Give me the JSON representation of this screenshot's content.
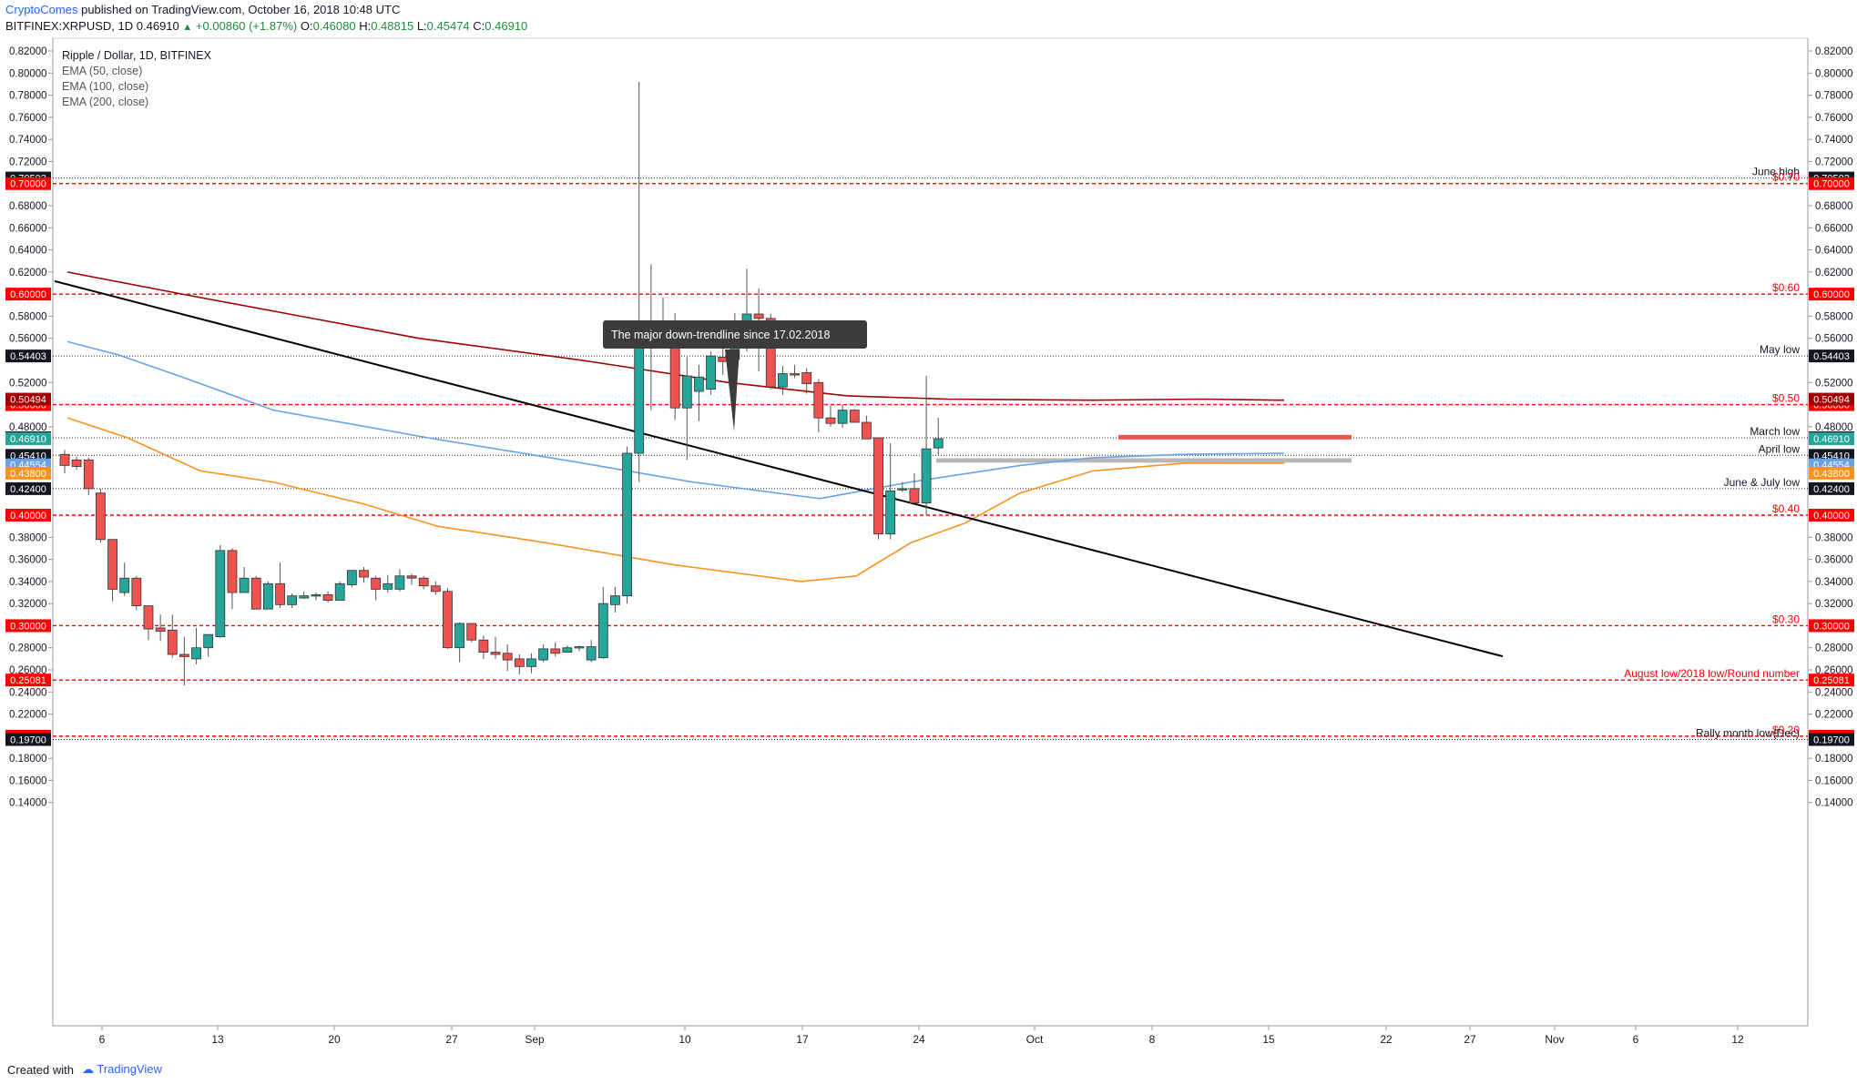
{
  "header": {
    "author": "CryptoComes",
    "published": "published on TradingView.com, October 16, 2018 10:48 UTC",
    "symbol": "BITFINEX:XRPUSD, 1D",
    "last": "0.46910",
    "change": "+0.00860 (+1.87%)",
    "o_label": "O:",
    "o": "0.46080",
    "h_label": "H:",
    "h": "0.48815",
    "l_label": "L:",
    "l": "0.45474",
    "c_label": "C:",
    "c": "0.46910"
  },
  "legend": {
    "title": "Ripple / Dollar, 1D, BITFINEX",
    "ema50": "EMA (50, close)",
    "ema100": "EMA (100, close)",
    "ema200": "EMA (200, close)"
  },
  "footer": {
    "created": "Created with",
    "brand": "TradingView"
  },
  "colors": {
    "up": "#26a69a",
    "down": "#ef5350",
    "ema50": "#f7931e",
    "ema100": "#6aa1e8",
    "ema200": "#a00000",
    "red_level": "#ff0000",
    "trendline": "#000000"
  },
  "chart_data": {
    "type": "candlestick",
    "title": "Ripple / Dollar, 1D, BITFINEX",
    "ylim": [
      0.14,
      0.82
    ],
    "y_ticks": [
      "0.82000",
      "0.80000",
      "0.78000",
      "0.76000",
      "0.74000",
      "0.72000",
      "0.68000",
      "0.66000",
      "0.64000",
      "0.62000",
      "0.58000",
      "0.56000",
      "0.52000",
      "0.48000",
      "0.38000",
      "0.36000",
      "0.34000",
      "0.32000",
      "0.28000",
      "0.26000",
      "0.24000",
      "0.22000",
      "0.18000",
      "0.16000",
      "0.14000"
    ],
    "x_ticks": [
      "6",
      "13",
      "20",
      "27",
      "Sep",
      "10",
      "17",
      "24",
      "Oct",
      "8",
      "15",
      "22",
      "27",
      "Nov",
      "6",
      "12"
    ],
    "candles": [
      {
        "o": 0.455,
        "h": 0.459,
        "l": 0.438,
        "c": 0.445
      },
      {
        "o": 0.45,
        "h": 0.453,
        "l": 0.441,
        "c": 0.444
      },
      {
        "o": 0.45,
        "h": 0.452,
        "l": 0.418,
        "c": 0.424
      },
      {
        "o": 0.42,
        "h": 0.424,
        "l": 0.375,
        "c": 0.378
      },
      {
        "o": 0.378,
        "h": 0.378,
        "l": 0.322,
        "c": 0.333
      },
      {
        "o": 0.33,
        "h": 0.357,
        "l": 0.327,
        "c": 0.343
      },
      {
        "o": 0.343,
        "h": 0.345,
        "l": 0.314,
        "c": 0.318
      },
      {
        "o": 0.318,
        "h": 0.318,
        "l": 0.287,
        "c": 0.297
      },
      {
        "o": 0.298,
        "h": 0.31,
        "l": 0.286,
        "c": 0.295
      },
      {
        "o": 0.296,
        "h": 0.31,
        "l": 0.271,
        "c": 0.274
      },
      {
        "o": 0.274,
        "h": 0.29,
        "l": 0.246,
        "c": 0.272
      },
      {
        "o": 0.27,
        "h": 0.298,
        "l": 0.265,
        "c": 0.28
      },
      {
        "o": 0.28,
        "h": 0.29,
        "l": 0.272,
        "c": 0.292
      },
      {
        "o": 0.29,
        "h": 0.373,
        "l": 0.289,
        "c": 0.368
      },
      {
        "o": 0.368,
        "h": 0.37,
        "l": 0.315,
        "c": 0.33
      },
      {
        "o": 0.33,
        "h": 0.353,
        "l": 0.33,
        "c": 0.343
      },
      {
        "o": 0.343,
        "h": 0.345,
        "l": 0.315,
        "c": 0.315
      },
      {
        "o": 0.315,
        "h": 0.34,
        "l": 0.315,
        "c": 0.338
      },
      {
        "o": 0.338,
        "h": 0.357,
        "l": 0.316,
        "c": 0.319
      },
      {
        "o": 0.319,
        "h": 0.329,
        "l": 0.316,
        "c": 0.327
      },
      {
        "o": 0.325,
        "h": 0.331,
        "l": 0.324,
        "c": 0.327
      },
      {
        "o": 0.327,
        "h": 0.33,
        "l": 0.323,
        "c": 0.328
      },
      {
        "o": 0.328,
        "h": 0.331,
        "l": 0.321,
        "c": 0.323
      },
      {
        "o": 0.323,
        "h": 0.34,
        "l": 0.323,
        "c": 0.338
      },
      {
        "o": 0.337,
        "h": 0.35,
        "l": 0.335,
        "c": 0.35
      },
      {
        "o": 0.35,
        "h": 0.353,
        "l": 0.339,
        "c": 0.344
      },
      {
        "o": 0.343,
        "h": 0.345,
        "l": 0.323,
        "c": 0.333
      },
      {
        "o": 0.333,
        "h": 0.346,
        "l": 0.33,
        "c": 0.338
      },
      {
        "o": 0.333,
        "h": 0.351,
        "l": 0.331,
        "c": 0.345
      },
      {
        "o": 0.345,
        "h": 0.347,
        "l": 0.337,
        "c": 0.343
      },
      {
        "o": 0.343,
        "h": 0.345,
        "l": 0.333,
        "c": 0.336
      },
      {
        "o": 0.336,
        "h": 0.34,
        "l": 0.328,
        "c": 0.331
      },
      {
        "o": 0.331,
        "h": 0.334,
        "l": 0.279,
        "c": 0.28
      },
      {
        "o": 0.28,
        "h": 0.303,
        "l": 0.267,
        "c": 0.302
      },
      {
        "o": 0.302,
        "h": 0.302,
        "l": 0.285,
        "c": 0.287
      },
      {
        "o": 0.287,
        "h": 0.291,
        "l": 0.27,
        "c": 0.276
      },
      {
        "o": 0.276,
        "h": 0.29,
        "l": 0.27,
        "c": 0.274
      },
      {
        "o": 0.275,
        "h": 0.283,
        "l": 0.259,
        "c": 0.269
      },
      {
        "o": 0.27,
        "h": 0.274,
        "l": 0.256,
        "c": 0.263
      },
      {
        "o": 0.263,
        "h": 0.275,
        "l": 0.257,
        "c": 0.27
      },
      {
        "o": 0.269,
        "h": 0.283,
        "l": 0.267,
        "c": 0.279
      },
      {
        "o": 0.279,
        "h": 0.285,
        "l": 0.272,
        "c": 0.275
      },
      {
        "o": 0.276,
        "h": 0.282,
        "l": 0.276,
        "c": 0.28
      },
      {
        "o": 0.28,
        "h": 0.282,
        "l": 0.277,
        "c": 0.281
      },
      {
        "o": 0.269,
        "h": 0.287,
        "l": 0.267,
        "c": 0.281
      },
      {
        "o": 0.271,
        "h": 0.335,
        "l": 0.27,
        "c": 0.32
      },
      {
        "o": 0.319,
        "h": 0.335,
        "l": 0.312,
        "c": 0.327
      },
      {
        "o": 0.327,
        "h": 0.462,
        "l": 0.32,
        "c": 0.456
      },
      {
        "o": 0.456,
        "h": 0.792,
        "l": 0.43,
        "c": 0.567
      },
      {
        "o": 0.566,
        "h": 0.627,
        "l": 0.495,
        "c": 0.575
      },
      {
        "o": 0.573,
        "h": 0.597,
        "l": 0.555,
        "c": 0.571
      },
      {
        "o": 0.573,
        "h": 0.583,
        "l": 0.486,
        "c": 0.497
      },
      {
        "o": 0.497,
        "h": 0.543,
        "l": 0.45,
        "c": 0.526
      },
      {
        "o": 0.512,
        "h": 0.536,
        "l": 0.485,
        "c": 0.525
      },
      {
        "o": 0.514,
        "h": 0.548,
        "l": 0.509,
        "c": 0.544
      },
      {
        "o": 0.543,
        "h": 0.552,
        "l": 0.527,
        "c": 0.539
      },
      {
        "o": 0.541,
        "h": 0.583,
        "l": 0.538,
        "c": 0.569
      },
      {
        "o": 0.569,
        "h": 0.623,
        "l": 0.548,
        "c": 0.582
      },
      {
        "o": 0.582,
        "h": 0.605,
        "l": 0.53,
        "c": 0.578
      },
      {
        "o": 0.578,
        "h": 0.582,
        "l": 0.514,
        "c": 0.516
      },
      {
        "o": 0.516,
        "h": 0.535,
        "l": 0.509,
        "c": 0.528
      },
      {
        "o": 0.528,
        "h": 0.536,
        "l": 0.524,
        "c": 0.527
      },
      {
        "o": 0.529,
        "h": 0.533,
        "l": 0.51,
        "c": 0.519
      },
      {
        "o": 0.52,
        "h": 0.523,
        "l": 0.475,
        "c": 0.488
      },
      {
        "o": 0.488,
        "h": 0.499,
        "l": 0.48,
        "c": 0.483
      },
      {
        "o": 0.483,
        "h": 0.5,
        "l": 0.479,
        "c": 0.495
      },
      {
        "o": 0.495,
        "h": 0.496,
        "l": 0.484,
        "c": 0.484
      },
      {
        "o": 0.484,
        "h": 0.49,
        "l": 0.469,
        "c": 0.469
      },
      {
        "o": 0.47,
        "h": 0.47,
        "l": 0.378,
        "c": 0.383
      },
      {
        "o": 0.383,
        "h": 0.465,
        "l": 0.378,
        "c": 0.422
      },
      {
        "o": 0.423,
        "h": 0.43,
        "l": 0.421,
        "c": 0.424
      },
      {
        "o": 0.424,
        "h": 0.438,
        "l": 0.41,
        "c": 0.411
      },
      {
        "o": 0.411,
        "h": 0.526,
        "l": 0.4,
        "c": 0.46
      },
      {
        "o": 0.4608,
        "h": 0.48815,
        "l": 0.45474,
        "c": 0.4691
      }
    ],
    "ema200": [
      [
        0.62,
        0.602
      ],
      [
        0.6,
        0.57
      ],
      [
        0.58,
        0.535
      ],
      [
        0.56,
        0.515
      ],
      [
        0.54,
        0.5
      ],
      [
        0.52,
        0.495
      ],
      [
        0.508,
        0.505
      ],
      [
        0.505,
        0.51
      ],
      [
        0.504,
        0.52
      ]
    ],
    "ema100": [
      [
        0.557,
        0.52
      ],
      [
        0.545,
        0.48
      ],
      [
        0.52,
        0.46
      ],
      [
        0.49,
        0.44
      ],
      [
        0.47,
        0.4
      ],
      [
        0.448,
        0.445
      ],
      [
        0.452,
        0.455
      ],
      [
        0.456,
        0.458
      ]
    ],
    "ema50": [
      [
        0.488,
        0.465
      ],
      [
        0.43,
        0.425
      ],
      [
        0.415,
        0.375
      ],
      [
        0.382,
        0.34
      ],
      [
        0.349,
        0.333
      ],
      [
        0.341,
        0.393
      ],
      [
        0.414,
        0.448
      ],
      [
        0.446,
        0.447
      ]
    ],
    "horizontal_levels": [
      {
        "value": 0.70503,
        "label": "June high",
        "badge": "0.70503",
        "style": "black-dotted"
      },
      {
        "value": 0.7,
        "label": "$0.70",
        "badge": "0.70000",
        "style": "red-dashed"
      },
      {
        "value": 0.6,
        "label": "$0.60",
        "badge": "0.60000",
        "style": "red-dashed"
      },
      {
        "value": 0.54403,
        "label": "May low",
        "badge": "0.54403",
        "style": "black-dotted"
      },
      {
        "value": 0.5,
        "label": "$0.50",
        "badge": "0.50000",
        "style": "red-dashed"
      },
      {
        "value": 0.47,
        "label": "March low",
        "badge": "0.47000",
        "style": "black-dotted"
      },
      {
        "value": 0.4541,
        "label": "April low",
        "badge": "0.45410",
        "style": "black-dotted"
      },
      {
        "value": 0.424,
        "label": "June & July low",
        "badge": "0.42400",
        "style": "black-dotted"
      },
      {
        "value": 0.4,
        "label": "$0.40",
        "badge": "0.40000",
        "style": "red-dashed"
      },
      {
        "value": 0.3,
        "label": "$0.30",
        "badge": "0.30000",
        "style": "red-dashed"
      },
      {
        "value": 0.25081,
        "label": "August low/2018 low/Round number",
        "badge": "0.25081",
        "style": "red-dashed"
      },
      {
        "value": 0.2,
        "label": "$0.20",
        "badge": "0.20000",
        "style": "red-dashed"
      },
      {
        "value": 0.197,
        "label": "Rally month low(Dec)",
        "badge": "0.19700",
        "style": "black-dotted"
      }
    ],
    "extra_badges": [
      {
        "value": 0.50494,
        "text": "0.50494",
        "bg": "#a00000"
      },
      {
        "value": 0.4691,
        "text": "0.46910",
        "bg": "#26a69a"
      },
      {
        "value": 0.44554,
        "text": "0.44554",
        "bg": "#6aa1e8"
      },
      {
        "value": 0.438,
        "text": "0.43800",
        "bg": "#f7931e"
      }
    ],
    "trendline": [
      [
        0.62,
        0.32
      ]
    ],
    "zones": [
      {
        "from": 0.4475,
        "to": 0.4515,
        "color": "#b8b8b8"
      },
      {
        "value": 0.4705,
        "color": "#ef5350"
      }
    ],
    "annotations": [
      {
        "text": "The major down-trendline since 17.02.2018",
        "points_to": 0.476
      }
    ]
  }
}
